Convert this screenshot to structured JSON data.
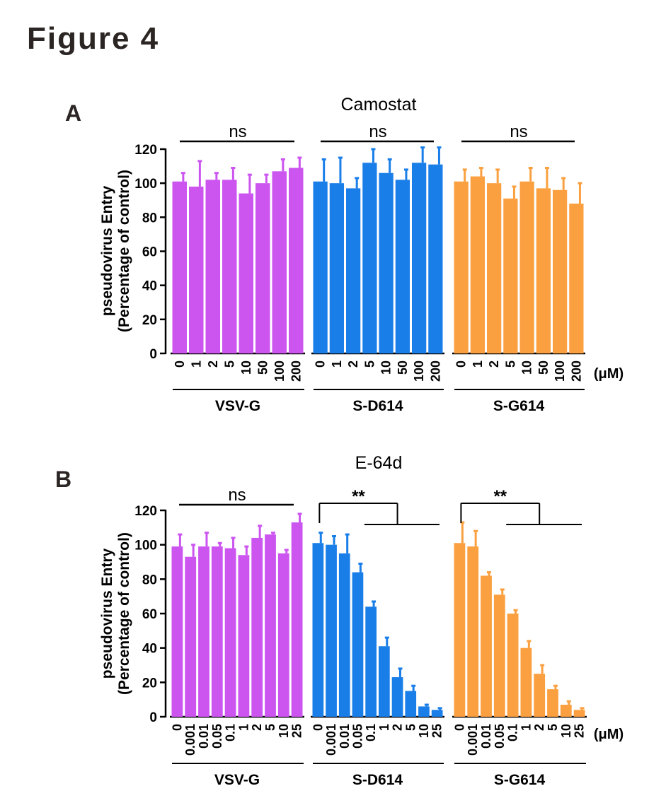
{
  "figure_title": "Figure 4",
  "unit_label": "(μM)",
  "colors": {
    "VSV-G": "#cc55f0",
    "S-D614": "#1a7ee8",
    "S-G614": "#fba040",
    "axis": "#000000"
  },
  "chart_data": [
    {
      "panel": "A",
      "type": "bar",
      "title": "Camostat",
      "ylabel_line1": "pseudovirus Entry",
      "ylabel_line2": "(Percentage of control)",
      "ylim": [
        0,
        120
      ],
      "yticks": [
        "0",
        "20",
        "40",
        "60",
        "80",
        "100",
        "120"
      ],
      "groups": [
        {
          "name": "VSV-G",
          "color_key": "VSV-G",
          "categories": [
            "0",
            "1",
            "2",
            "5",
            "10",
            "50",
            "100",
            "200"
          ],
          "values": [
            101,
            98,
            102,
            102,
            94,
            100,
            107,
            109
          ],
          "errors": [
            5,
            15,
            4,
            7,
            11,
            5,
            7,
            6
          ],
          "significance": {
            "label": "ns",
            "style": "line"
          }
        },
        {
          "name": "S-D614",
          "color_key": "S-D614",
          "categories": [
            "0",
            "1",
            "2",
            "5",
            "10",
            "50",
            "100",
            "200"
          ],
          "values": [
            101,
            100,
            97,
            112,
            106,
            102,
            112,
            111
          ],
          "errors": [
            13,
            15,
            6,
            8,
            8,
            6,
            9,
            10
          ],
          "significance": {
            "label": "ns",
            "style": "line"
          }
        },
        {
          "name": "S-G614",
          "color_key": "S-G614",
          "categories": [
            "0",
            "1",
            "2",
            "5",
            "10",
            "50",
            "100",
            "200"
          ],
          "values": [
            101,
            104,
            100,
            91,
            101,
            97,
            96,
            88
          ],
          "errors": [
            7,
            5,
            8,
            7,
            8,
            12,
            7,
            12
          ],
          "significance": {
            "label": "ns",
            "style": "line"
          }
        }
      ]
    },
    {
      "panel": "B",
      "type": "bar",
      "title": "E-64d",
      "ylabel_line1": "pseudovirus Entry",
      "ylabel_line2": "(Percentage of control)",
      "ylim": [
        0,
        120
      ],
      "yticks": [
        "0",
        "20",
        "40",
        "60",
        "80",
        "100",
        "120"
      ],
      "groups": [
        {
          "name": "VSV-G",
          "color_key": "VSV-G",
          "categories": [
            "0",
            "0.001",
            "0.01",
            "0.05",
            "0.1",
            "1",
            "2",
            "5",
            "10",
            "25"
          ],
          "values": [
            99,
            93,
            99,
            99,
            98,
            94,
            104,
            106,
            95,
            113
          ],
          "errors": [
            7,
            7,
            8,
            2,
            6,
            5,
            7,
            1,
            2,
            5
          ],
          "significance": {
            "label": "ns",
            "style": "line"
          }
        },
        {
          "name": "S-D614",
          "color_key": "S-D614",
          "categories": [
            "0",
            "0.001",
            "0.01",
            "0.05",
            "0.1",
            "1",
            "2",
            "5",
            "10",
            "25"
          ],
          "values": [
            101,
            100,
            95,
            84,
            64,
            41,
            23,
            15,
            6,
            4
          ],
          "errors": [
            6,
            5,
            11,
            5,
            3,
            5,
            5,
            3,
            1,
            1
          ],
          "significance": {
            "label": "**",
            "style": "bracket"
          }
        },
        {
          "name": "S-G614",
          "color_key": "S-G614",
          "categories": [
            "0",
            "0.001",
            "0.01",
            "0.05",
            "0.1",
            "1",
            "2",
            "5",
            "10",
            "25"
          ],
          "values": [
            101,
            99,
            82,
            71,
            60,
            40,
            25,
            16,
            7,
            4
          ],
          "errors": [
            12,
            9,
            2,
            3,
            2,
            4,
            5,
            2,
            2,
            1
          ],
          "significance": {
            "label": "**",
            "style": "bracket"
          }
        }
      ]
    }
  ]
}
